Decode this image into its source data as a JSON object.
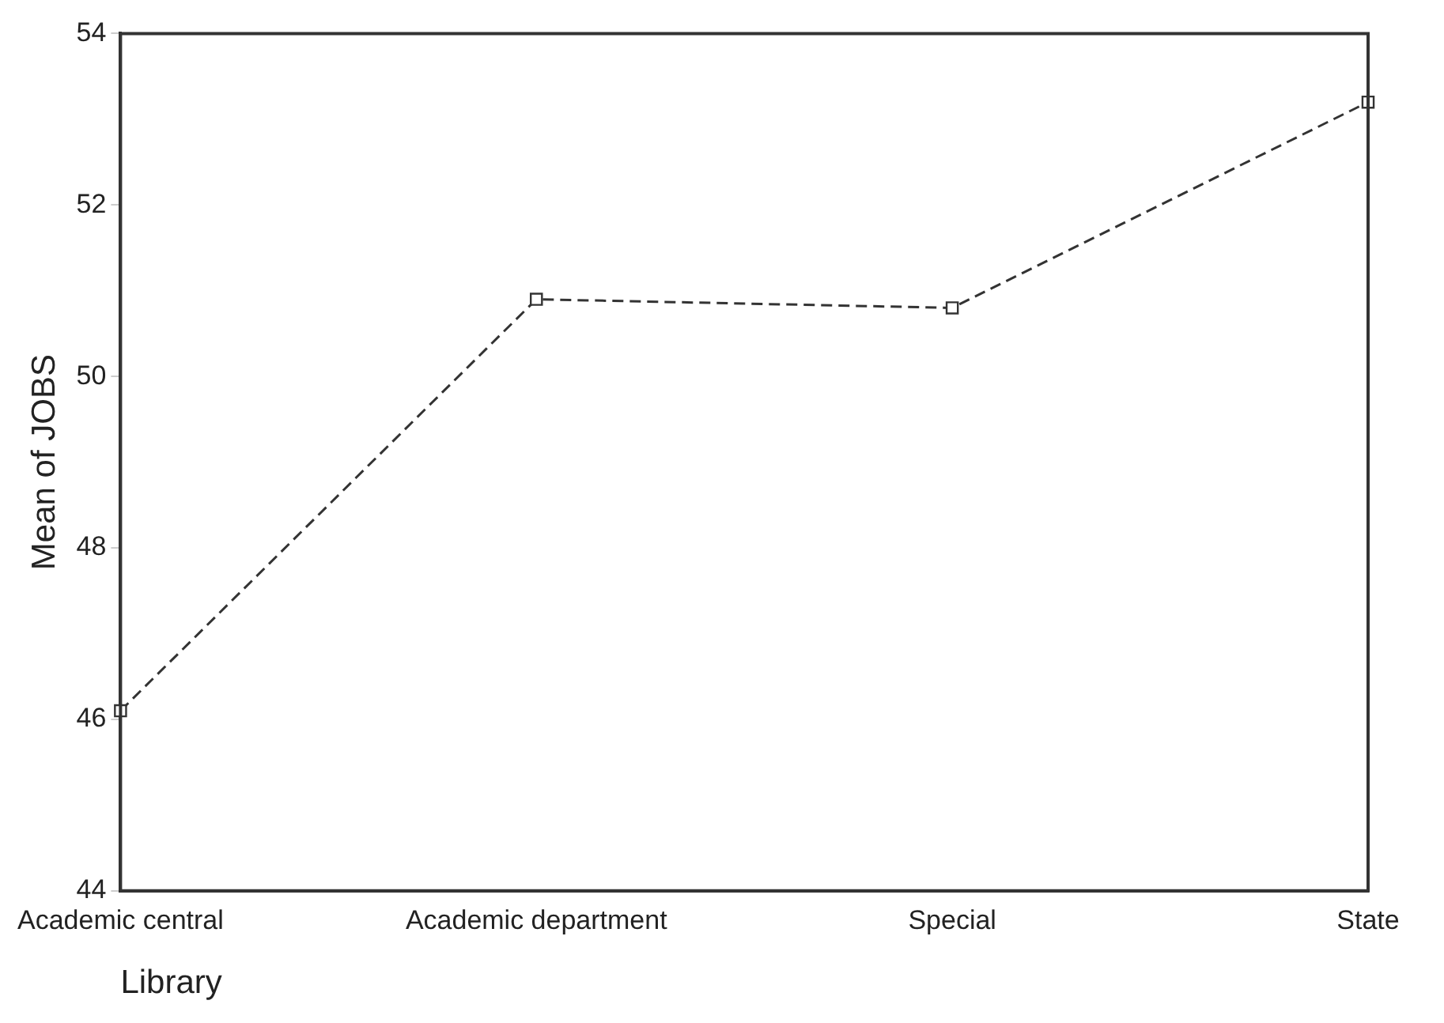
{
  "chart_data": {
    "type": "line",
    "xlabel": "Library",
    "ylabel": "Mean of JOBS",
    "categories": [
      "Academic central",
      "Academic department",
      "Special",
      "State"
    ],
    "series": [
      {
        "color": "#333333",
        "values": [
          46.1,
          50.9,
          50.8,
          53.2
        ]
      }
    ],
    "ylim": [
      44,
      54
    ],
    "yticks": [
      44,
      46,
      48,
      50,
      52,
      54
    ],
    "grid": false,
    "legend": false,
    "marker": "square",
    "line_style": "dashed"
  }
}
